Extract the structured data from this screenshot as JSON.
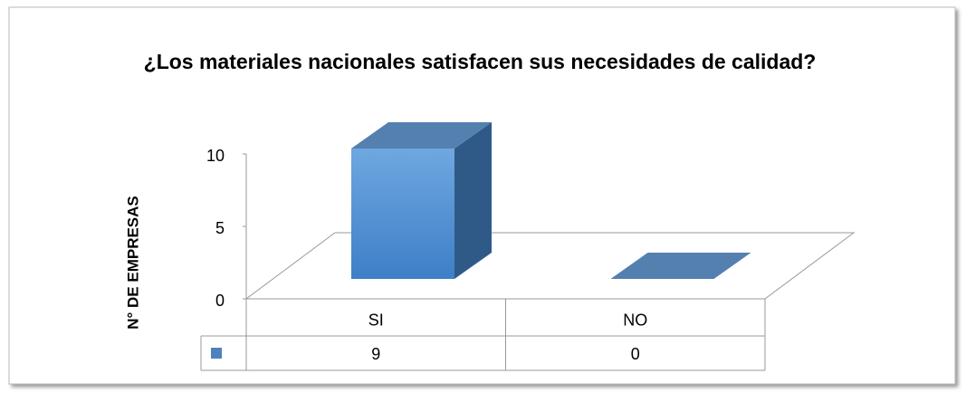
{
  "chart_data": {
    "type": "bar3d",
    "title": "¿Los materiales nacionales satisfacen sus necesidades de calidad?",
    "y_label": "N° DE EMPRESAS",
    "categories": [
      "SI",
      "NO"
    ],
    "values": [
      9,
      0
    ],
    "color": "#4f81bd",
    "ylim": [
      0,
      10
    ],
    "yticks": [
      0,
      5,
      10
    ],
    "data_table": true
  }
}
